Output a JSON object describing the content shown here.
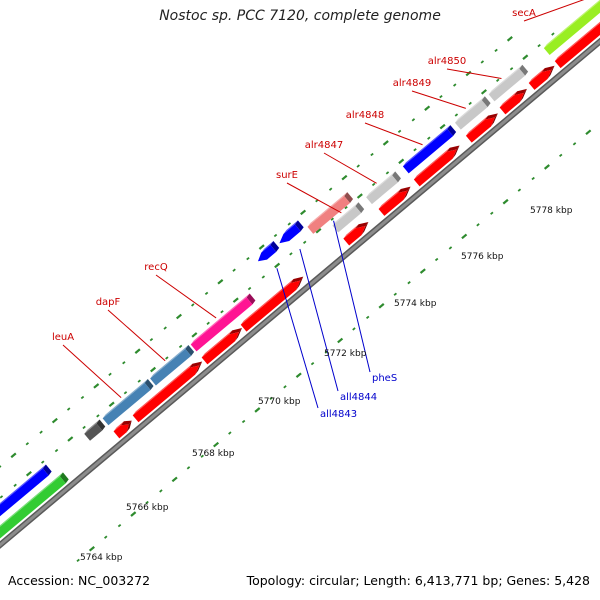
{
  "title": "Nostoc sp. PCC 7120, complete genome",
  "footer": {
    "accession_label": "Accession:",
    "accession": "NC_003272",
    "topology_label": "Topology:",
    "topology": "circular",
    "length_label": "Length:",
    "length": "6,413,771 bp",
    "genes_label": "Genes:",
    "genes": "5,428"
  },
  "colors": {
    "backbone": "#8c8c8c",
    "tick": "#2e8b2e",
    "forward_label": "#cc0000",
    "reverse_label": "#0000cc",
    "cds": "#ff0000",
    "blue": "#0000ff",
    "grey": "#c8c8c8",
    "dark_grey": "#555555",
    "steel_blue": "#4682b4",
    "magenta": "#ff1493",
    "lime": "#99ee22",
    "green": "#33cc33",
    "pink": "#f08080"
  },
  "scale_labels": [
    "5764 kbp",
    "5766 kbp",
    "5768 kbp",
    "5770 kbp",
    "5772 kbp",
    "5774 kbp",
    "5776 kbp",
    "5778 kbp"
  ],
  "forward_genes": [
    {
      "name": "leuA",
      "color": "steel_blue"
    },
    {
      "name": "dapF",
      "color": "steel_blue"
    },
    {
      "name": "recQ",
      "color": "magenta"
    },
    {
      "name": "surE",
      "color": "grey"
    },
    {
      "name": "alr4847",
      "color": "grey"
    },
    {
      "name": "alr4848",
      "color": "blue"
    },
    {
      "name": "alr4849",
      "color": "grey"
    },
    {
      "name": "alr4850",
      "color": "grey"
    },
    {
      "name": "secA",
      "color": "lime"
    }
  ],
  "reverse_genes": [
    {
      "name": "all4843",
      "color": "blue"
    },
    {
      "name": "all4844",
      "color": "blue"
    },
    {
      "name": "pheS",
      "color": "pink"
    }
  ]
}
